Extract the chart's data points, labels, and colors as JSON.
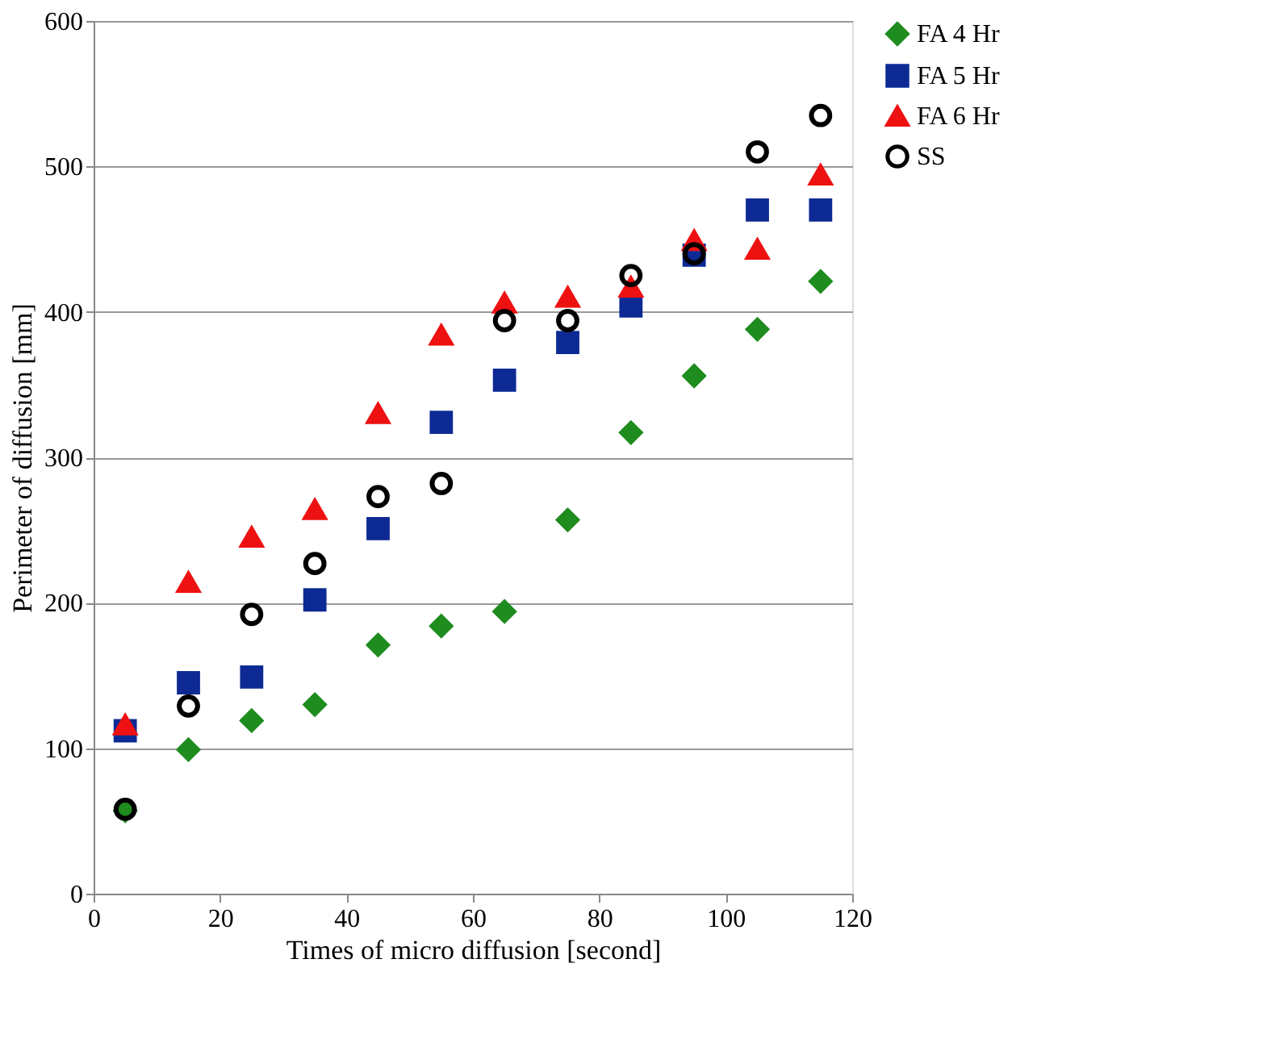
{
  "chart_data": {
    "type": "scatter",
    "xlabel": "Times of micro diffusion [second]",
    "ylabel": "Perimeter of diffusion [mm]",
    "x": [
      5,
      15,
      25,
      35,
      45,
      55,
      65,
      75,
      85,
      95,
      105,
      115
    ],
    "xlim": [
      0,
      120
    ],
    "xticks": [
      0,
      20,
      40,
      60,
      80,
      100,
      120
    ],
    "ylim": [
      0,
      600
    ],
    "yticks": [
      0,
      100,
      200,
      300,
      400,
      500,
      600
    ],
    "grid": "y",
    "legend": "right",
    "series": [
      {
        "name": "FA 4 Hr",
        "color": "#1e8c1e",
        "marker": "diamond",
        "values": [
          57,
          99,
          119,
          130,
          171,
          184,
          194,
          257,
          317,
          356,
          388,
          421
        ]
      },
      {
        "name": "FA 5 Hr",
        "color": "#0d2a94",
        "marker": "square",
        "values": [
          112,
          145,
          149,
          202,
          251,
          324,
          353,
          379,
          404,
          439,
          470,
          470
        ]
      },
      {
        "name": "FA 6 Hr",
        "color": "#ee1111",
        "marker": "triangle",
        "values": [
          116,
          214,
          245,
          264,
          330,
          384,
          406,
          410,
          417,
          449,
          443,
          494
        ]
      },
      {
        "name": "SS",
        "color": "#000000",
        "marker": "circle",
        "values": [
          58,
          129,
          192,
          227,
          273,
          282,
          394,
          394,
          425,
          440,
          510,
          535
        ]
      }
    ]
  }
}
